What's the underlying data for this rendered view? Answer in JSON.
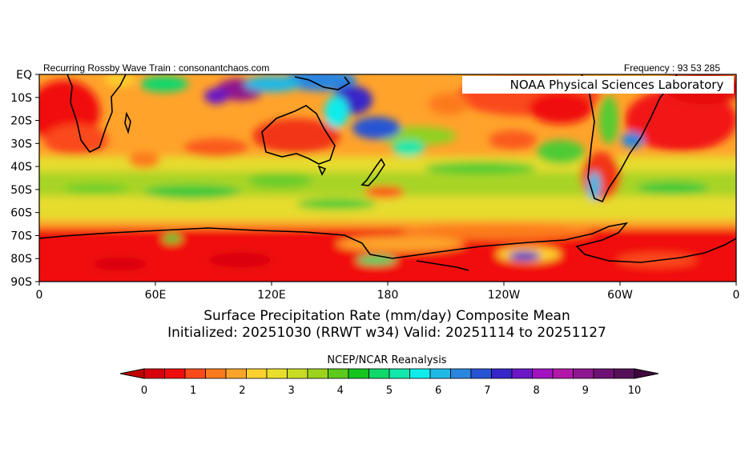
{
  "header": {
    "left_text": "Recurring Rossby Wave Train : consonantchaos.com",
    "right_text": "Frequency : 93 53 285"
  },
  "map": {
    "watermark": "NOAA Physical Sciences Laboratory",
    "lat_labels": [
      "EQ",
      "10S",
      "20S",
      "30S",
      "40S",
      "50S",
      "60S",
      "70S",
      "80S",
      "90S"
    ],
    "lon_labels": [
      "0",
      "60E",
      "120E",
      "180",
      "120W",
      "60W",
      "0"
    ],
    "title_line1": "Surface Precipitation Rate (mm/day) Composite Mean",
    "title_line2": "Initialized: 20251030 (RRWT w34) Valid: 20251114 to 20251127",
    "source": "NCEP/NCAR Reanalysis"
  },
  "colorbar": {
    "tick_labels": [
      "0",
      "1",
      "2",
      "3",
      "4",
      "5",
      "6",
      "7",
      "8",
      "9",
      "10"
    ],
    "colors": [
      "#d8000c",
      "#f10d0d",
      "#fa4a1a",
      "#fc7a1e",
      "#fda42a",
      "#fed02e",
      "#e8df2c",
      "#c9dc25",
      "#9dd31e",
      "#5cc91c",
      "#15c41f",
      "#10d86a",
      "#12e8ac",
      "#10ecec",
      "#1fb8e6",
      "#2a85df",
      "#2754d4",
      "#3727c8",
      "#6b17c6",
      "#a112c1",
      "#b218a8",
      "#8f1890",
      "#6e1074",
      "#55105a"
    ]
  }
}
